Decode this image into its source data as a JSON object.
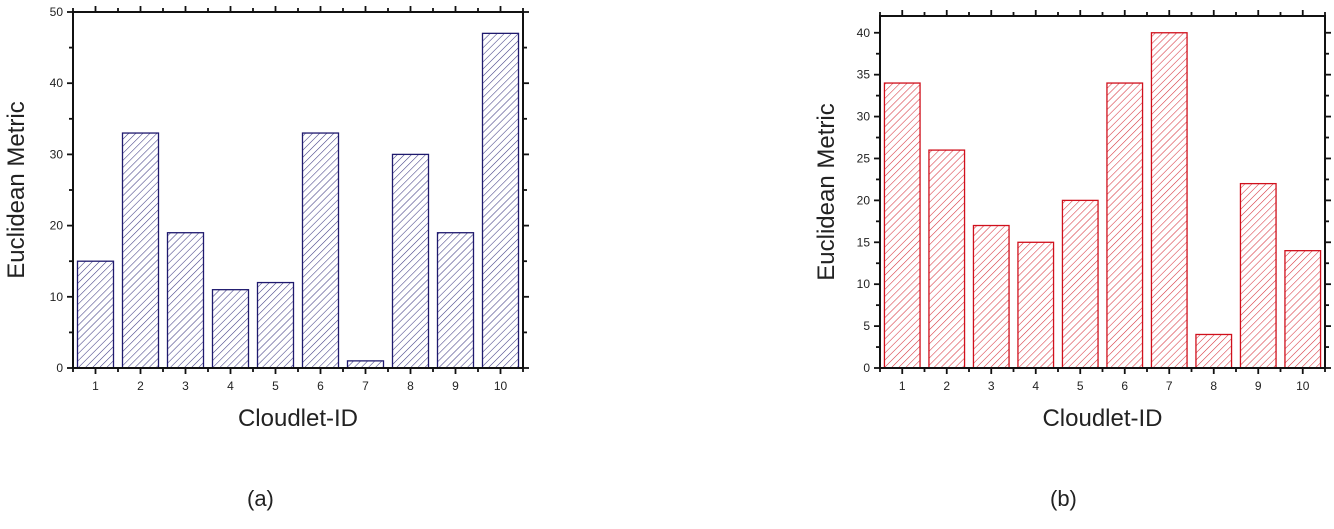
{
  "chart_data": [
    {
      "type": "bar",
      "panel_label": "(a)",
      "title": "",
      "xlabel": "Cloudlet-ID",
      "ylabel": "Euclidean Metric",
      "categories": [
        "1",
        "2",
        "3",
        "4",
        "5",
        "6",
        "7",
        "8",
        "9",
        "10"
      ],
      "values": [
        15,
        33,
        19,
        11,
        12,
        33,
        1,
        30,
        19,
        47
      ],
      "ylim": [
        0,
        50
      ],
      "yticks": [
        0,
        10,
        20,
        30,
        40,
        50
      ],
      "fill_pattern": "diagonal-hatch",
      "color": "#1f1a6e",
      "grid": false,
      "legend": null
    },
    {
      "type": "bar",
      "panel_label": "(b)",
      "title": "",
      "xlabel": "Cloudlet-ID",
      "ylabel": "Euclidean Metric",
      "categories": [
        "1",
        "2",
        "3",
        "4",
        "5",
        "6",
        "7",
        "8",
        "9",
        "10"
      ],
      "values": [
        34,
        26,
        17,
        15,
        20,
        34,
        40,
        4,
        22,
        14
      ],
      "ylim": [
        0,
        42
      ],
      "yticks": [
        0,
        5,
        10,
        15,
        20,
        25,
        30,
        35,
        40
      ],
      "fill_pattern": "diagonal-hatch",
      "color": "#d0101c",
      "grid": false,
      "legend": null
    }
  ],
  "captions": {
    "a": "(a)",
    "b": "(b)"
  }
}
